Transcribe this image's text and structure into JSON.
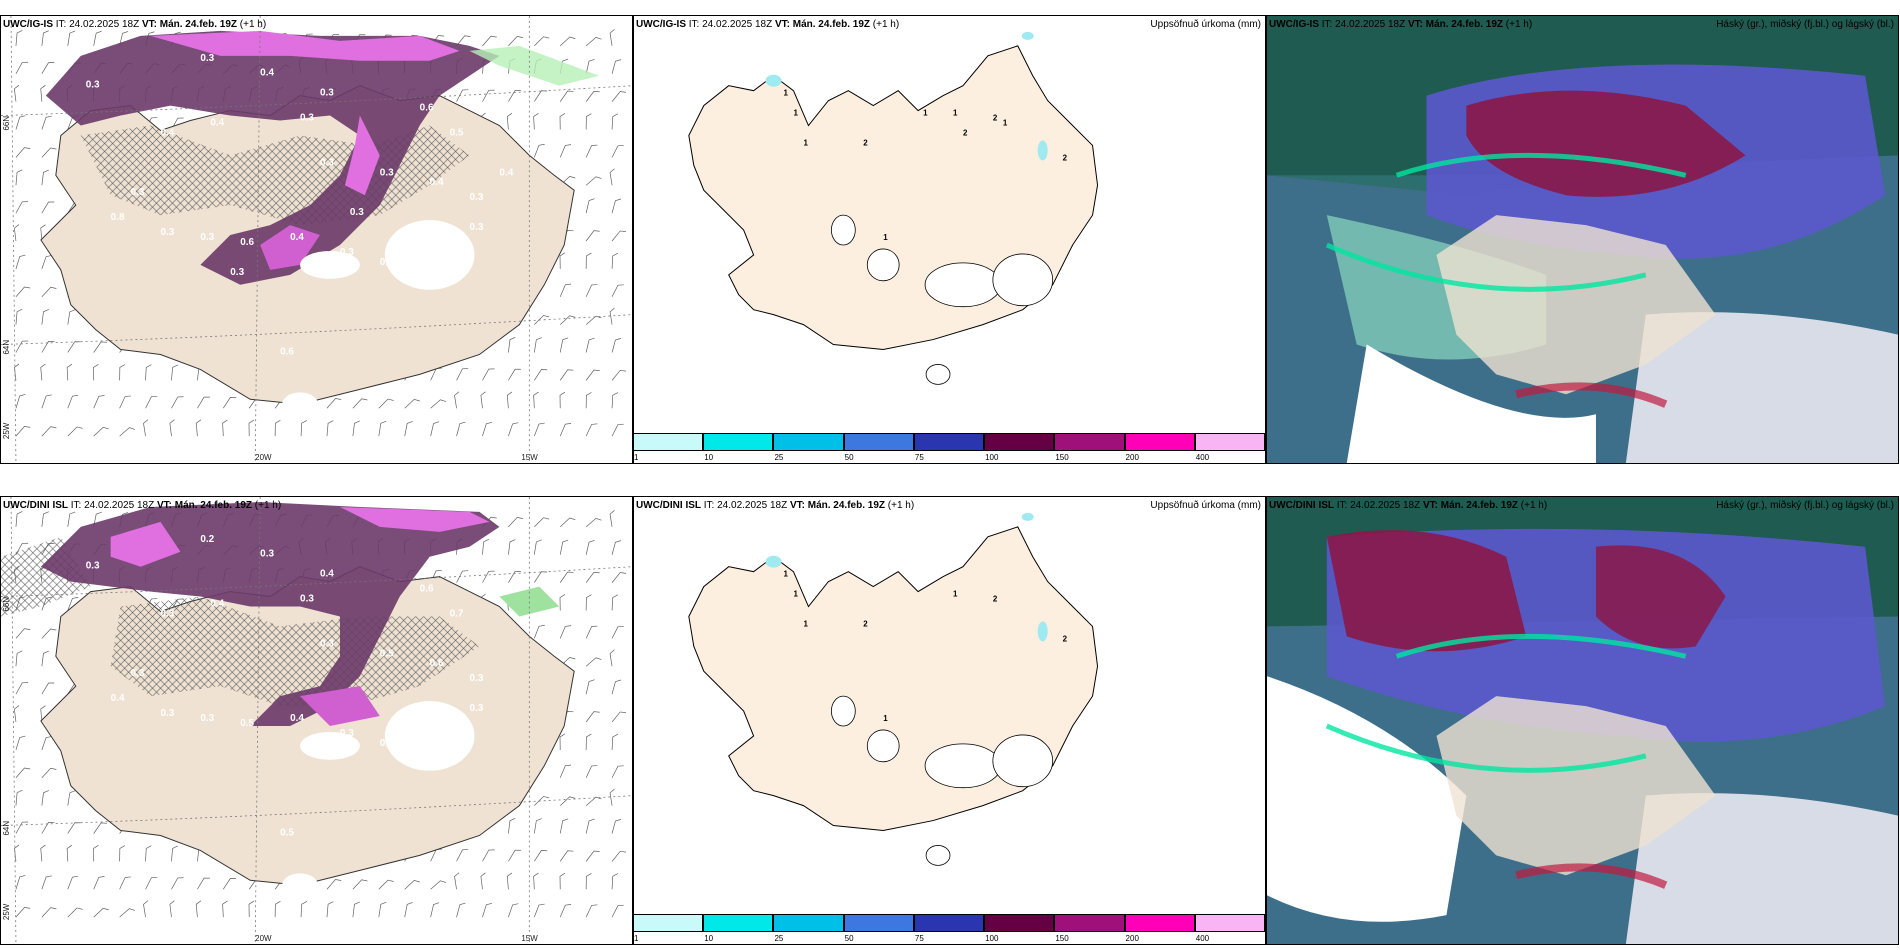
{
  "rows": [
    {
      "model": "UWC/IG-IS",
      "it_label": "IT:",
      "it_value": "24.02.2025 18Z",
      "vt_label": "VT:",
      "vt_value": "Mán. 24.feb. 19Z",
      "offset": "(+1 h)",
      "middle_title": "Uppsöfnuð úrkoma (mm)",
      "right_title": "Háský (gr.), miðský (fj.bl.) og lágský (bl.)",
      "lon_labels": [
        "20W",
        "15W"
      ],
      "lat_labels": [
        "66N",
        "64N",
        "25W"
      ],
      "precip_values": [
        "0.3",
        "0.3",
        "0.4",
        "0.3",
        "0.4",
        "0.4",
        "0.3",
        "0.6",
        "0.5",
        "0.3",
        "0.3",
        "0.4",
        "0.3",
        "0.8",
        "0.3",
        "0.3",
        "0.6",
        "0.4",
        "0.3",
        "0.3",
        "0.5",
        "0.3",
        "0.6",
        "0.3",
        "0.3",
        "0.4",
        "0.3"
      ],
      "middle_numbers": [
        "1",
        "1",
        "1",
        "2",
        "1",
        "2",
        "2",
        "1",
        "1",
        "2",
        "1"
      ]
    },
    {
      "model": "UWC/DINI ISL",
      "it_label": "IT:",
      "it_value": "24.02.2025 18Z",
      "vt_label": "VT:",
      "vt_value": "Mán. 24.feb. 19Z",
      "offset": "(+1 h)",
      "middle_title": "Uppsöfnuð úrkoma (mm)",
      "right_title": "Háský (gr.), miðský (fj.bl.) og lágský (bl.)",
      "lon_labels": [
        "20W",
        "15W"
      ],
      "lat_labels": [
        "66N",
        "64N",
        "25W"
      ],
      "precip_values": [
        "0.3",
        "0.2",
        "0.3",
        "0.4",
        "0.3",
        "0.4",
        "0.3",
        "0.6",
        "0.7",
        "0.3",
        "0.5",
        "0.6",
        "0.3",
        "0.4",
        "0.3",
        "0.3",
        "0.5",
        "0.4",
        "0.3",
        "0.4",
        "0.3",
        "0.3",
        "0.5",
        "0.3"
      ],
      "middle_numbers": [
        "1",
        "1",
        "1",
        "2",
        "1",
        "2",
        "2",
        "1"
      ]
    }
  ],
  "legend": {
    "ticks": [
      "1",
      "10",
      "25",
      "50",
      "75",
      "100",
      "150",
      "200",
      "400"
    ],
    "colors": [
      "#c8fafa",
      "#00e8e8",
      "#00c0e8",
      "#3c78e0",
      "#2a35b0",
      "#660044",
      "#a0107a",
      "#ff00b8",
      "#f8b4f4"
    ]
  }
}
